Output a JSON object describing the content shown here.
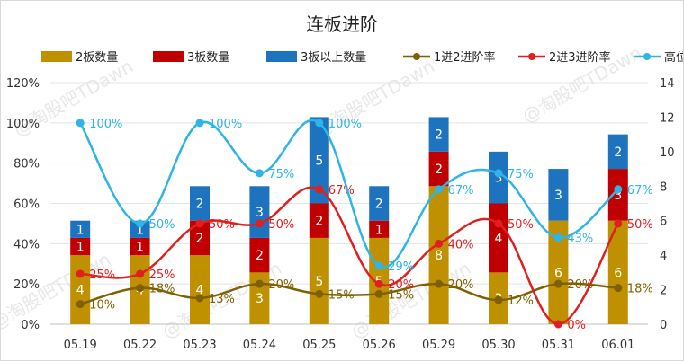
{
  "chart_data": {
    "type": "bar",
    "title": "连板进阶",
    "categories": [
      "05.19",
      "05.22",
      "05.23",
      "05.24",
      "05.25",
      "05.26",
      "05.29",
      "05.30",
      "05.31",
      "06.01"
    ],
    "y_left": {
      "min": 0,
      "max": 1.2,
      "ticks": [
        "0%",
        "20%",
        "40%",
        "60%",
        "80%",
        "100%",
        "120%"
      ]
    },
    "y_right": {
      "min": 0,
      "max": 14,
      "ticks": [
        "0",
        "2",
        "4",
        "6",
        "8",
        "10",
        "12",
        "14"
      ]
    },
    "bar_series": [
      {
        "name": "2板数量",
        "color": "#bf9000",
        "values": [
          4,
          4,
          4,
          3,
          5,
          5,
          8,
          3,
          6,
          6
        ]
      },
      {
        "name": "3板数量",
        "color": "#c00000",
        "values": [
          1,
          1,
          2,
          2,
          2,
          1,
          2,
          4,
          0,
          3
        ]
      },
      {
        "name": "3板以上数量",
        "color": "#1e73be",
        "values": [
          1,
          1,
          2,
          3,
          5,
          2,
          2,
          3,
          3,
          2
        ]
      }
    ],
    "line_series": [
      {
        "name": "1进2进阶率",
        "color": "#7f6000",
        "values": [
          0.1,
          0.18,
          0.13,
          0.2,
          0.15,
          0.15,
          0.2,
          0.12,
          0.2,
          0.18
        ],
        "labels": [
          "10%",
          "18%",
          "13%",
          "20%",
          "15%",
          "15%",
          "20%",
          "12%",
          "20%",
          "18%"
        ]
      },
      {
        "name": "2进3进阶率",
        "color": "#e02020",
        "values": [
          0.25,
          0.25,
          0.5,
          0.5,
          0.67,
          0.2,
          0.4,
          0.5,
          0.0,
          0.5
        ],
        "labels": [
          "25%",
          "25%",
          "50%",
          "50%",
          "67%",
          "20%",
          "40%",
          "50%",
          "0%",
          "50%"
        ]
      },
      {
        "name": "高位进阶率",
        "color": "#2eb4e6",
        "values": [
          1.0,
          0.5,
          1.0,
          0.75,
          1.0,
          0.29,
          0.67,
          0.75,
          0.43,
          0.67
        ],
        "labels": [
          "100%",
          "50%",
          "100%",
          "75%",
          "100%",
          "29%",
          "67%",
          "75%",
          "43%",
          "67%"
        ]
      }
    ],
    "legend_position": "top",
    "grid": "horizontal",
    "watermark": "@淘股吧TDawn"
  }
}
